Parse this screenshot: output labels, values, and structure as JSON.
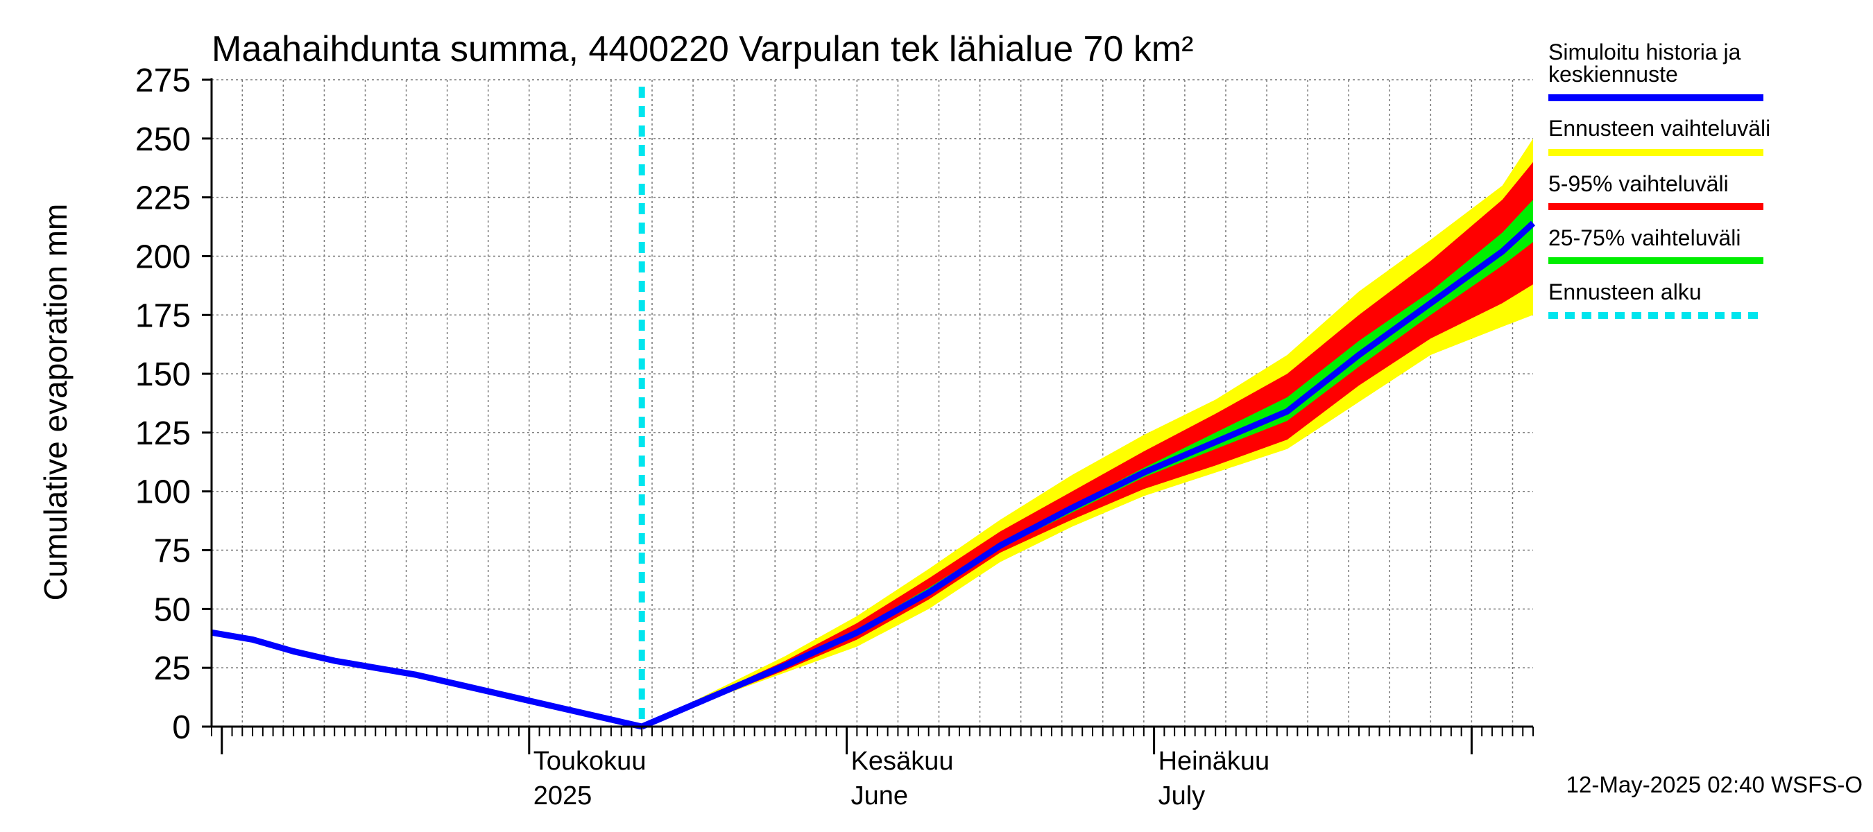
{
  "chart_data": {
    "type": "area",
    "title": "Maahaihdunta summa, 4400220 Varpulan tek lähialue 70 km²",
    "ylabel": "Cumulative evaporation   mm",
    "ylim": [
      0,
      275
    ],
    "yticks": [
      0,
      25,
      50,
      75,
      100,
      125,
      150,
      175,
      200,
      225,
      250,
      275
    ],
    "xlim": [
      "2025-03-31",
      "2025-08-07"
    ],
    "x_axis_labels": [
      {
        "line1": "Toukokuu",
        "line2": "2025",
        "date": "2025-05-01"
      },
      {
        "line1": "Kesäkuu",
        "line2": "June",
        "date": "2025-06-01"
      },
      {
        "line1": "Heinäkuu",
        "line2": "July",
        "date": "2025-07-01"
      }
    ],
    "grid": true,
    "legend_position": "right",
    "forecast_start": "2025-05-12",
    "history": {
      "name": "Simuloitu historia ja keskiennuste",
      "color": "#0000ff",
      "x": [
        "2025-03-31",
        "2025-04-04",
        "2025-04-08",
        "2025-04-12",
        "2025-04-16",
        "2025-04-20",
        "2025-04-24",
        "2025-04-28",
        "2025-05-02",
        "2025-05-06",
        "2025-05-10",
        "2025-05-12"
      ],
      "y": [
        40,
        37,
        32,
        28,
        25,
        22,
        18,
        14,
        10,
        6,
        2,
        0
      ]
    },
    "series": [
      {
        "name": "Ennusteen vaihteluväli",
        "color": "#ffff00",
        "x": [
          "2025-05-12",
          "2025-05-19",
          "2025-05-26",
          "2025-06-02",
          "2025-06-09",
          "2025-06-16",
          "2025-06-23",
          "2025-06-30",
          "2025-07-07",
          "2025-07-14",
          "2025-07-21",
          "2025-07-28",
          "2025-08-04",
          "2025-08-07"
        ],
        "upper": [
          0,
          15,
          30,
          47,
          67,
          88,
          107,
          124,
          139,
          158,
          185,
          207,
          230,
          250
        ],
        "lower": [
          0,
          12,
          23,
          34,
          50,
          70,
          85,
          98,
          108,
          118,
          138,
          158,
          170,
          175
        ]
      },
      {
        "name": "5-95% vaihteluväli",
        "color": "#ff0000",
        "x": [
          "2025-05-12",
          "2025-05-19",
          "2025-05-26",
          "2025-06-02",
          "2025-06-09",
          "2025-06-16",
          "2025-06-23",
          "2025-06-30",
          "2025-07-07",
          "2025-07-14",
          "2025-07-21",
          "2025-07-28",
          "2025-08-04",
          "2025-08-07"
        ],
        "upper": [
          0,
          14,
          28,
          44,
          63,
          83,
          100,
          117,
          133,
          150,
          175,
          198,
          224,
          240
        ],
        "lower": [
          0,
          12,
          24,
          37,
          54,
          74,
          88,
          101,
          111,
          122,
          145,
          165,
          180,
          188
        ]
      },
      {
        "name": "25-75% vaihteluväli",
        "color": "#00ee00",
        "x": [
          "2025-05-12",
          "2025-05-19",
          "2025-05-26",
          "2025-06-02",
          "2025-06-09",
          "2025-06-16",
          "2025-06-23",
          "2025-06-30",
          "2025-07-07",
          "2025-07-14",
          "2025-07-21",
          "2025-07-28",
          "2025-08-04",
          "2025-08-07"
        ],
        "upper": [
          0,
          13,
          26,
          41,
          59,
          78,
          94,
          110,
          125,
          140,
          164,
          185,
          210,
          224
        ],
        "lower": [
          0,
          12,
          25,
          39,
          56,
          76,
          91,
          106,
          118,
          130,
          153,
          175,
          196,
          206
        ]
      },
      {
        "name": "Keskiennuste",
        "color": "#0000ff",
        "x": [
          "2025-05-12",
          "2025-05-19",
          "2025-05-26",
          "2025-06-02",
          "2025-06-09",
          "2025-06-16",
          "2025-06-23",
          "2025-06-30",
          "2025-07-07",
          "2025-07-14",
          "2025-07-21",
          "2025-07-28",
          "2025-08-04",
          "2025-08-07"
        ],
        "y": [
          0,
          13,
          26,
          40,
          57,
          77,
          93,
          108,
          121,
          134,
          158,
          180,
          202,
          214
        ]
      }
    ],
    "legend": [
      {
        "label": "Simuloitu historia ja keskiennuste",
        "color": "#0000ff",
        "style": "solid"
      },
      {
        "label": "Ennusteen vaihteluväli",
        "color": "#ffff00",
        "style": "solid"
      },
      {
        "label": "5-95% vaihteluväli",
        "color": "#ff0000",
        "style": "solid"
      },
      {
        "label": "25-75% vaihteluväli",
        "color": "#00ee00",
        "style": "solid"
      },
      {
        "label": "Ennusteen alku",
        "color": "#00e5ee",
        "style": "dashed"
      }
    ],
    "footer": "12-May-2025 02:40 WSFS-O"
  }
}
